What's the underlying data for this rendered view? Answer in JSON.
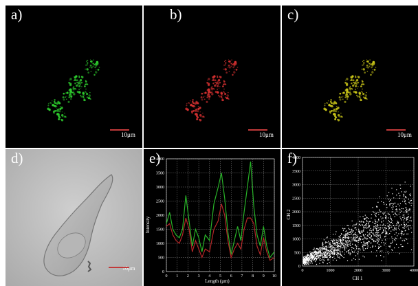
{
  "panels": {
    "a": {
      "label": "a)",
      "scale": "10μm",
      "tint": "#2ecc2e"
    },
    "b": {
      "label": "b)",
      "scale": "10μm",
      "tint": "#d43030"
    },
    "c": {
      "label": "c)",
      "scale": "10μm",
      "tint": "#c8c418"
    },
    "d": {
      "label": "d)",
      "scale": "10μm"
    },
    "e": {
      "label": "e)"
    },
    "f": {
      "label": "f)"
    }
  },
  "chart_data": [
    {
      "type": "line",
      "panel": "e",
      "xlabel": "Length (μm)",
      "ylabel": "Intensity",
      "xlim": [
        0,
        10
      ],
      "ylim": [
        0,
        4000
      ],
      "xticks": [
        "0",
        "1",
        "2",
        "3",
        "4",
        "5",
        "6",
        "7",
        "8",
        "9",
        "10"
      ],
      "yticks": [
        "0",
        "500",
        "1000",
        "1500",
        "2000",
        "2500",
        "3000",
        "3500",
        "4000"
      ],
      "grid": true,
      "series": [
        {
          "color": "#28b428",
          "x": [
            0,
            0.3,
            0.6,
            0.9,
            1.2,
            1.5,
            1.8,
            2.1,
            2.4,
            2.7,
            3.0,
            3.3,
            3.6,
            4.0,
            4.4,
            4.8,
            5.1,
            5.4,
            5.7,
            6.0,
            6.3,
            6.6,
            6.9,
            7.2,
            7.5,
            7.8,
            8.1,
            8.4,
            8.7,
            9.0,
            9.3,
            9.6,
            10
          ],
          "y": [
            1700,
            2100,
            1500,
            1300,
            1200,
            1500,
            2700,
            1800,
            900,
            1500,
            1200,
            700,
            1300,
            1100,
            2400,
            3000,
            3500,
            2600,
            1400,
            600,
            1100,
            1600,
            1100,
            2100,
            3000,
            3900,
            2300,
            1300,
            900,
            1600,
            900,
            500,
            700
          ]
        },
        {
          "color": "#b42828",
          "x": [
            0,
            0.3,
            0.6,
            0.9,
            1.2,
            1.5,
            1.8,
            2.1,
            2.4,
            2.7,
            3.0,
            3.3,
            3.6,
            4.0,
            4.4,
            4.8,
            5.1,
            5.4,
            5.7,
            6.0,
            6.3,
            6.6,
            6.9,
            7.2,
            7.5,
            7.8,
            8.1,
            8.4,
            8.7,
            9.0,
            9.3,
            9.6,
            10
          ],
          "y": [
            1600,
            1700,
            1300,
            1100,
            1000,
            1300,
            1900,
            1500,
            700,
            1100,
            800,
            500,
            800,
            700,
            1500,
            1800,
            2400,
            2000,
            1100,
            500,
            800,
            1000,
            800,
            1500,
            1900,
            1900,
            1700,
            900,
            600,
            1200,
            700,
            400,
            500
          ]
        }
      ]
    },
    {
      "type": "scatter",
      "panel": "f",
      "xlabel": "CH 1",
      "ylabel": "CH 2",
      "xlim": [
        0,
        4000
      ],
      "ylim": [
        0,
        4000
      ],
      "xticks": [
        "0",
        "1000",
        "2000",
        "3000",
        "4000"
      ],
      "yticks": [
        "0",
        "500",
        "1000",
        "1500",
        "2000",
        "2500",
        "3000",
        "3500",
        "4000"
      ],
      "grid": true,
      "trend": {
        "x": [
          0,
          4000
        ],
        "y": [
          200,
          2000
        ]
      }
    }
  ]
}
